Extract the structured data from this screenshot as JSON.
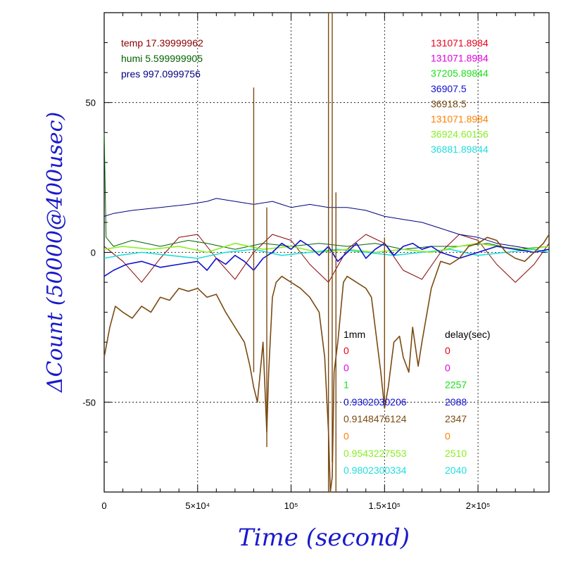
{
  "chart_data": {
    "type": "line",
    "xlabel": "Time (second)",
    "ylabel": "ΔCount (50000@400usec)",
    "xlim": [
      0,
      238000
    ],
    "ylim": [
      -80,
      80
    ],
    "x_ticks": [
      {
        "value": 0,
        "label": "0"
      },
      {
        "value": 50000,
        "label": "5×10⁴"
      },
      {
        "value": 100000,
        "label": "10⁵"
      },
      {
        "value": 150000,
        "label": "1.5×10⁵"
      },
      {
        "value": 200000,
        "label": "2×10⁵"
      }
    ],
    "y_ticks": [
      {
        "value": 50,
        "label": "50"
      },
      {
        "value": 0,
        "label": "0"
      },
      {
        "value": -50,
        "label": "-50"
      }
    ],
    "grid": true,
    "env_readouts": [
      {
        "text": "temp 17.39999962",
        "color": "#8b0000"
      },
      {
        "text": "humi 5.599999905",
        "color": "#006400"
      },
      {
        "text": "pres 997.0999756",
        "color": "#000080"
      }
    ],
    "channel_values": [
      {
        "text": "131071.8984",
        "color": "#e8001a"
      },
      {
        "text": "131071.8984",
        "color": "#e000e0"
      },
      {
        "text": "37205.89844",
        "color": "#18e018"
      },
      {
        "text": "36907.5",
        "color": "#1010d0"
      },
      {
        "text": "36918.5",
        "color": "#7b4a12"
      },
      {
        "text": "131071.8984",
        "color": "#ff8000"
      },
      {
        "text": "36924.60156",
        "color": "#88ee22"
      },
      {
        "text": "36881.89844",
        "color": "#22dddd"
      }
    ],
    "table_headers": {
      "col1": "1mm",
      "col2": "delay(sec)",
      "color": "#000000"
    },
    "table_rows": [
      {
        "c1": "0",
        "c2": "0",
        "color": "#e8001a"
      },
      {
        "c1": "0",
        "c2": "0",
        "color": "#e000e0"
      },
      {
        "c1": "1",
        "c2": "2257",
        "color": "#18e018"
      },
      {
        "c1": "0.9302030206",
        "c2": "2088",
        "color": "#1010d0"
      },
      {
        "c1": "0.9148476124",
        "c2": "2347",
        "color": "#7b4a12"
      },
      {
        "c1": "0",
        "c2": "0",
        "color": "#ff8000"
      },
      {
        "c1": "0.9543227553",
        "c2": "2510",
        "color": "#88ee22"
      },
      {
        "c1": "0.9802300334",
        "c2": "2040",
        "color": "#22dddd"
      }
    ],
    "series": [
      {
        "color": "#8b0000",
        "x": [
          0,
          10000,
          20000,
          30000,
          40000,
          50000,
          60000,
          70000,
          80000,
          90000,
          100000,
          110000,
          120000,
          130000,
          140000,
          150000,
          160000,
          170000,
          180000,
          190000,
          200000,
          210000,
          220000,
          230000,
          238000
        ],
        "y": [
          2,
          -3,
          -10,
          -2,
          5,
          6,
          -2,
          -9,
          0,
          6,
          4,
          -4,
          -10,
          1,
          6,
          3,
          -6,
          -9,
          0,
          6,
          4,
          -4,
          -10,
          -4,
          3
        ]
      },
      {
        "color": "#006400",
        "x": [
          0,
          1000,
          5000,
          15000,
          30000,
          45000,
          55000,
          70000,
          85000,
          100000,
          115000,
          130000,
          145000,
          160000,
          175000,
          190000,
          205000,
          220000,
          238000
        ],
        "y": [
          40,
          5,
          2,
          4,
          2,
          4,
          3,
          1,
          3,
          2,
          3,
          2,
          3,
          1,
          2,
          2,
          3,
          1,
          2
        ]
      },
      {
        "color": "#000080",
        "x": [
          0,
          5000,
          15000,
          30000,
          45000,
          55000,
          60000,
          70000,
          80000,
          90000,
          95000,
          100000,
          110000,
          120000,
          130000,
          140000,
          150000,
          160000,
          170000,
          180000,
          190000,
          200000,
          210000,
          220000,
          230000,
          238000
        ],
        "y": [
          12,
          13,
          14,
          15,
          16,
          17,
          18,
          17,
          16,
          17,
          16,
          15,
          16,
          15,
          15,
          14,
          12,
          11,
          10,
          8,
          6,
          5,
          3,
          2,
          1,
          0
        ]
      },
      {
        "color": "#22dddd",
        "x": [
          0,
          8000,
          20000,
          35000,
          50000,
          65000,
          80000,
          95000,
          110000,
          125000,
          140000,
          155000,
          170000,
          185000,
          200000,
          215000,
          230000,
          238000
        ],
        "y": [
          -2,
          -1,
          0,
          -1,
          -2,
          0,
          1,
          -1,
          0,
          1,
          0,
          -1,
          0,
          1,
          -1,
          0,
          1,
          0
        ]
      },
      {
        "color": "#88ee22",
        "x": [
          0,
          10000,
          25000,
          40000,
          55000,
          70000,
          85000,
          100000,
          115000,
          130000,
          145000,
          160000,
          175000,
          190000,
          200000,
          210000,
          225000,
          238000
        ],
        "y": [
          1,
          2,
          1,
          2,
          0,
          3,
          1,
          2,
          0,
          1,
          0,
          1,
          0,
          2,
          3,
          2,
          1,
          2
        ]
      },
      {
        "color": "#1010d0",
        "x": [
          0,
          5000,
          12000,
          20000,
          30000,
          40000,
          50000,
          55000,
          60000,
          65000,
          70000,
          75000,
          80000,
          85000,
          90000,
          95000,
          100000,
          105000,
          110000,
          115000,
          120000,
          125000,
          130000,
          135000,
          140000,
          145000,
          150000,
          155000,
          160000,
          165000,
          170000,
          175000,
          180000,
          190000,
          200000,
          210000,
          220000,
          230000,
          238000
        ],
        "y": [
          -8,
          -6,
          -4,
          -3,
          -5,
          -4,
          -3,
          -6,
          -2,
          -4,
          -1,
          -3,
          -6,
          -2,
          0,
          3,
          1,
          4,
          2,
          -1,
          2,
          -3,
          0,
          3,
          -2,
          1,
          3,
          -1,
          2,
          3,
          1,
          2,
          0,
          -2,
          0,
          2,
          1,
          0,
          1
        ]
      },
      {
        "color": "#7b4a12",
        "x": [
          0,
          3000,
          6000,
          10000,
          15000,
          20000,
          25000,
          30000,
          35000,
          40000,
          45000,
          50000,
          55000,
          60000,
          65000,
          70000,
          75000,
          78000,
          80000,
          82000,
          85000,
          87000,
          88000,
          90000,
          92000,
          95000,
          100000,
          105000,
          110000,
          115000,
          118000,
          120000,
          121000,
          122000,
          123000,
          125000,
          128000,
          130000,
          135000,
          140000,
          143000,
          145000,
          148000,
          150000,
          152000,
          155000,
          158000,
          160000,
          163000,
          165000,
          168000,
          170000,
          175000,
          180000,
          185000,
          190000,
          195000,
          200000,
          205000,
          210000,
          215000,
          220000,
          225000,
          230000,
          235000,
          238000
        ],
        "y": [
          -35,
          -25,
          -18,
          -20,
          -22,
          -18,
          -20,
          -15,
          -16,
          -12,
          -13,
          -12,
          -15,
          -14,
          -20,
          -25,
          -30,
          -38,
          -45,
          -50,
          -30,
          -60,
          -40,
          -15,
          -10,
          -8,
          -10,
          -12,
          -15,
          -20,
          -35,
          -60,
          -80,
          -75,
          -40,
          -30,
          -10,
          -8,
          -10,
          -12,
          -15,
          -25,
          -40,
          -52,
          -45,
          -30,
          -28,
          -35,
          -40,
          -25,
          -38,
          -30,
          -12,
          -3,
          -4,
          -2,
          2,
          3,
          5,
          4,
          0,
          -2,
          -3,
          0,
          3,
          6
        ]
      }
    ]
  }
}
